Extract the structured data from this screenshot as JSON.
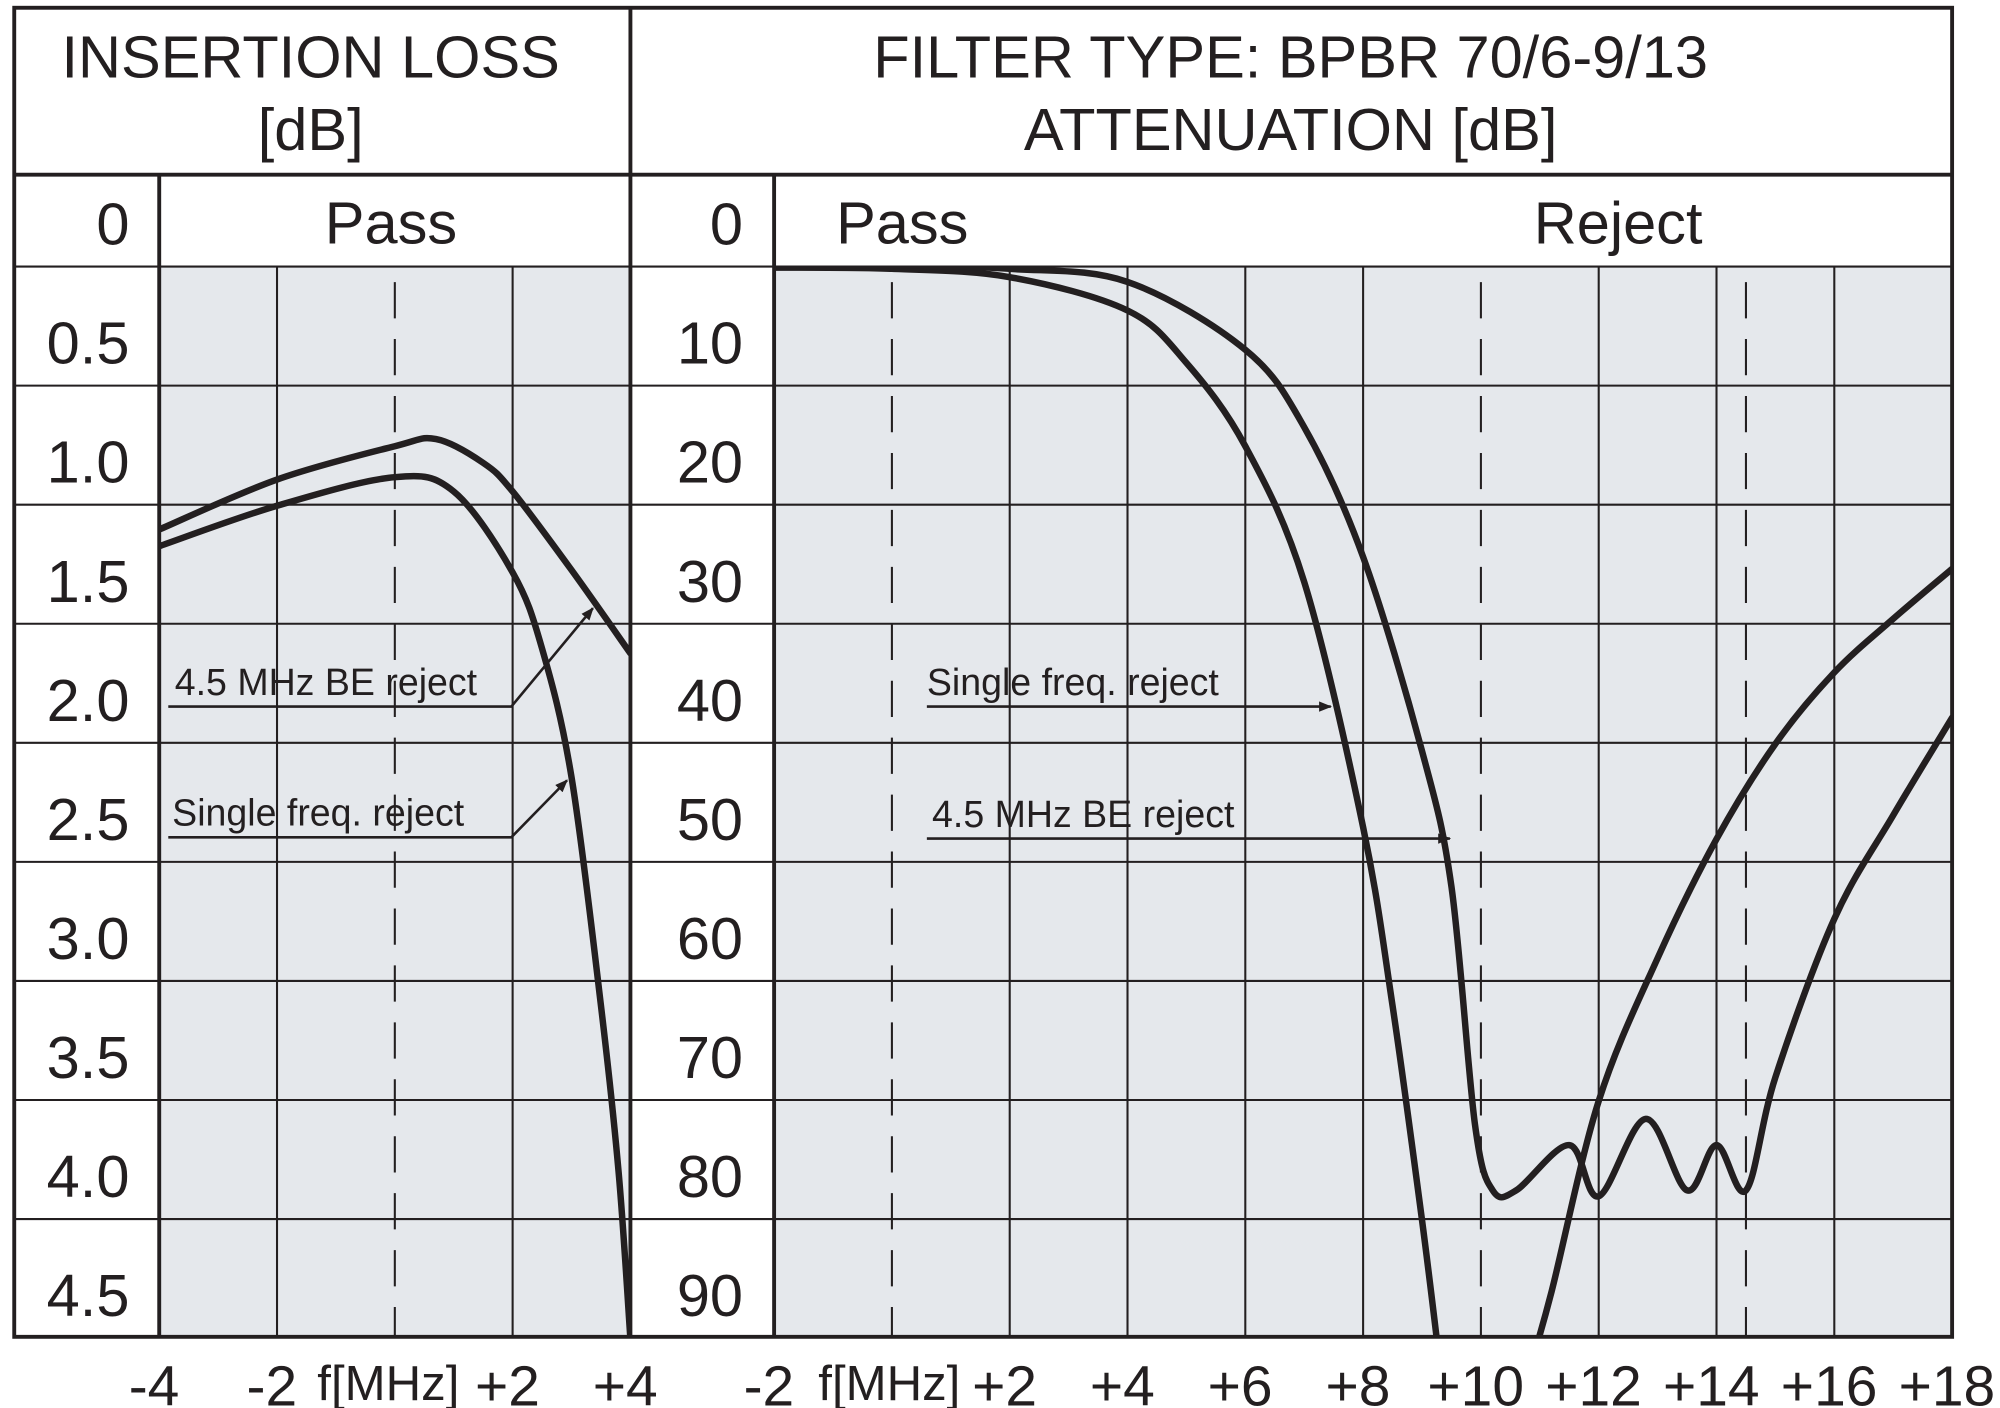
{
  "colors": {
    "plot_background": "#e5e8ec",
    "ink": "#231f20"
  },
  "chart_data": [
    {
      "type": "line",
      "title": "INSERTION LOSS",
      "subtitle": "[dB]",
      "region_label": "Pass",
      "xlabel": "f[MHz]",
      "xlim": [
        -4,
        4
      ],
      "x_ticks": [
        {
          "value": -4,
          "label": "-4"
        },
        {
          "value": -2,
          "label": "-2"
        },
        {
          "value": 2,
          "label": "+2"
        },
        {
          "value": 4,
          "label": "+4"
        }
      ],
      "dashed_x": [
        0
      ],
      "y_ticks": [
        "0",
        "0.5",
        "1.0",
        "1.5",
        "2.0",
        "2.5",
        "3.0",
        "3.5",
        "4.0",
        "4.5"
      ],
      "y_step": 0.5,
      "y_inverted": true,
      "grid": true,
      "series": [
        {
          "name": "Single freq. reject",
          "x": [
            -4,
            -2,
            0,
            1,
            2,
            2.5,
            3,
            3.5,
            3.8,
            4
          ],
          "y": [
            1.37,
            1.2,
            1.08,
            1.14,
            1.48,
            1.8,
            2.34,
            3.3,
            4.0,
            4.7
          ]
        },
        {
          "name": "4.5 MHz BE reject",
          "x": [
            -4,
            -2,
            0,
            0.7,
            1.5,
            2,
            3,
            4
          ],
          "y": [
            1.3,
            1.09,
            0.95,
            0.92,
            1.02,
            1.14,
            1.47,
            1.82
          ]
        }
      ],
      "annotations": [
        {
          "text": "4.5 MHz BE reject",
          "points_to": "4.5 MHz BE reject"
        },
        {
          "text": "Single freq. reject",
          "points_to": "Single freq. reject"
        }
      ]
    },
    {
      "type": "line",
      "title": "FILTER TYPE: BPBR 70/6-9/13",
      "subtitle": "ATTENUATION [dB]",
      "region_labels": [
        "Pass",
        "Reject"
      ],
      "xlabel": "f[MHz]",
      "xlim": [
        -2,
        18
      ],
      "x_ticks": [
        {
          "value": -2,
          "label": "-2"
        },
        {
          "value": 2,
          "label": "+2"
        },
        {
          "value": 4,
          "label": "+4"
        },
        {
          "value": 6,
          "label": "+6"
        },
        {
          "value": 8,
          "label": "+8"
        },
        {
          "value": 10,
          "label": "+10"
        },
        {
          "value": 12,
          "label": "+12"
        },
        {
          "value": 14,
          "label": "+14"
        },
        {
          "value": 16,
          "label": "+16"
        },
        {
          "value": 18,
          "label": "+18"
        }
      ],
      "dashed_x": [
        0,
        10,
        14.5
      ],
      "y_ticks": [
        "0",
        "10",
        "20",
        "30",
        "40",
        "50",
        "60",
        "70",
        "80",
        "90"
      ],
      "y_step": 10,
      "y_inverted": true,
      "grid": true,
      "series": [
        {
          "name": "Single freq. reject",
          "x": [
            -2,
            0,
            2,
            4,
            5,
            6,
            7,
            8,
            8.5,
            9,
            9.3
          ],
          "y": [
            4.0,
            4.1,
            4.8,
            7.6,
            12,
            19,
            30.4,
            51,
            66,
            84,
            96
          ]
        },
        {
          "name": "Single freq. reject",
          "x": [
            10.8,
            11.2,
            12,
            13,
            14,
            15,
            16,
            17,
            18
          ],
          "y": [
            97,
            90,
            74,
            62,
            52,
            44,
            38,
            33.5,
            29.3
          ]
        },
        {
          "name": "4.5 MHz BE reject",
          "x": [
            -2,
            0,
            2,
            4,
            6,
            7,
            8,
            9,
            9.5,
            9.9,
            10.2,
            10.6,
            11.5,
            12,
            12.8,
            13.5,
            14,
            14.5,
            15,
            16,
            17,
            18
          ],
          "y": [
            3.7,
            3.8,
            4.1,
            5.2,
            10.9,
            17.4,
            28.3,
            44.6,
            56,
            76,
            81.5,
            81.5,
            77.7,
            82,
            75.5,
            81.5,
            77.7,
            81.5,
            72,
            58.7,
            50,
            41.8
          ]
        }
      ],
      "annotations": [
        {
          "text": "Single freq. reject",
          "points_to": "Single freq. reject"
        },
        {
          "text": "4.5 MHz BE reject",
          "points_to": "4.5 MHz BE reject"
        }
      ]
    }
  ]
}
